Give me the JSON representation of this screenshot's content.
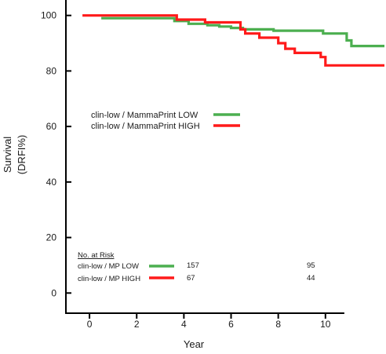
{
  "chart_data": {
    "type": "line",
    "title": "",
    "xlabel": "Year",
    "ylabel_lines": [
      "Survival",
      "(DRFI%)"
    ],
    "xlim": [
      -1,
      12.5
    ],
    "ylim": [
      -5,
      105
    ],
    "x_ticks": [
      0,
      2,
      4,
      6,
      8,
      10
    ],
    "x_tick_labels": [
      "0",
      "2",
      "4",
      "6",
      "8",
      "10"
    ],
    "y_ticks": [
      0,
      20,
      40,
      60,
      80,
      100
    ],
    "y_tick_labels": [
      "0",
      "20",
      "40",
      "60",
      "80",
      "100"
    ],
    "grid": false,
    "legend_position": "upper-middle",
    "step": true,
    "series": [
      {
        "name": "clin-low / MammaPrint LOW",
        "color": "#4caf50",
        "points": [
          [
            0.5,
            99.0
          ],
          [
            3.6,
            99.0
          ],
          [
            3.6,
            98.0
          ],
          [
            4.2,
            98.0
          ],
          [
            4.2,
            97.0
          ],
          [
            5.0,
            97.0
          ],
          [
            5.0,
            96.5
          ],
          [
            5.5,
            96.5
          ],
          [
            5.5,
            96.0
          ],
          [
            6.0,
            96.0
          ],
          [
            6.0,
            95.5
          ],
          [
            6.5,
            95.5
          ],
          [
            6.5,
            95.0
          ],
          [
            7.8,
            95.0
          ],
          [
            7.8,
            94.5
          ],
          [
            9.9,
            94.5
          ],
          [
            9.9,
            93.5
          ],
          [
            10.9,
            93.5
          ],
          [
            10.9,
            91.0
          ],
          [
            11.1,
            91.0
          ],
          [
            11.1,
            89.0
          ],
          [
            12.5,
            89.0
          ]
        ]
      },
      {
        "name": "clin-low / MammaPrint HIGH",
        "color": "#ff1a1a",
        "points": [
          [
            -0.3,
            100.0
          ],
          [
            3.7,
            100.0
          ],
          [
            3.7,
            98.5
          ],
          [
            4.9,
            98.5
          ],
          [
            4.9,
            97.5
          ],
          [
            6.4,
            97.5
          ],
          [
            6.4,
            95.0
          ],
          [
            6.6,
            95.0
          ],
          [
            6.6,
            93.5
          ],
          [
            7.2,
            93.5
          ],
          [
            7.2,
            92.0
          ],
          [
            8.0,
            92.0
          ],
          [
            8.0,
            90.0
          ],
          [
            8.3,
            90.0
          ],
          [
            8.3,
            88.0
          ],
          [
            8.7,
            88.0
          ],
          [
            8.7,
            86.5
          ],
          [
            9.8,
            86.5
          ],
          [
            9.8,
            85.0
          ],
          [
            10.0,
            85.0
          ],
          [
            10.0,
            82.0
          ],
          [
            12.5,
            82.0
          ]
        ]
      }
    ],
    "risk_table": {
      "heading": "No. at Risk",
      "time_points": [
        4,
        10
      ],
      "rows": [
        {
          "label": "clin-low / MP LOW",
          "color": "#4caf50",
          "values": [
            "157",
            "95"
          ]
        },
        {
          "label": "clin-low / MP HIGH",
          "color": "#ff1a1a",
          "values": [
            "67",
            "44"
          ]
        }
      ]
    }
  }
}
